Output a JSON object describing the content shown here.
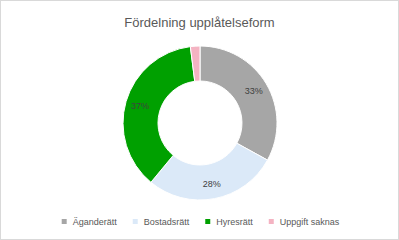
{
  "chart_data": {
    "type": "pie",
    "title": "Fördelning upplåtelseform",
    "categories": [
      "Äganderätt",
      "Bostadsrätt",
      "Hyresrätt",
      "Uppgift saknas"
    ],
    "values": [
      33,
      28,
      37,
      2
    ],
    "value_labels": [
      "33%",
      "28%",
      "37%",
      null
    ],
    "colors": [
      "#a6a6a6",
      "#dbe9f8",
      "#00a000",
      "#f4b3c2"
    ],
    "data_labels": true,
    "legend": "bottom"
  }
}
